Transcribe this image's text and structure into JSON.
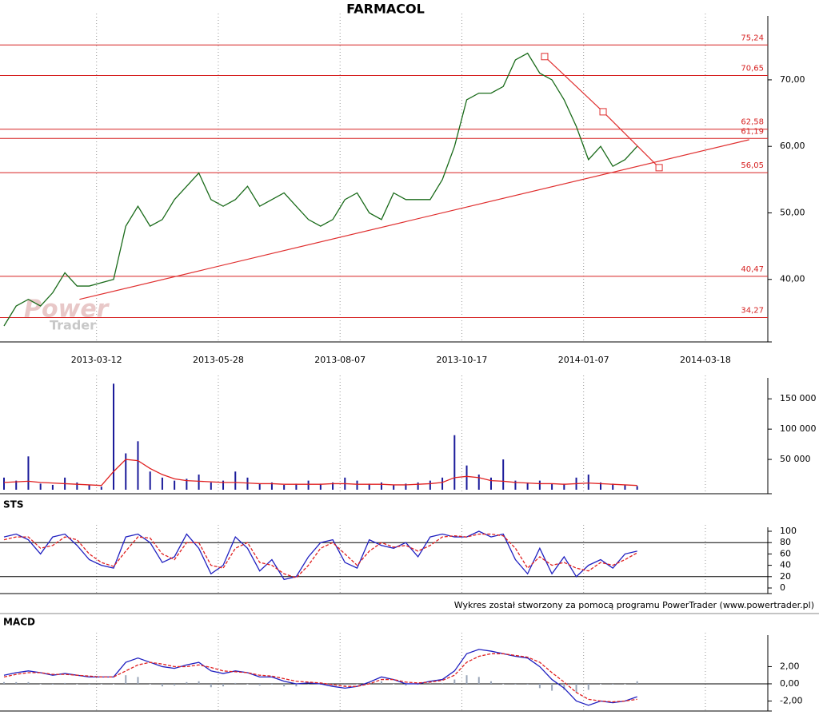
{
  "chart_data": [
    {
      "type": "line",
      "title": "FARMACOL",
      "x": [
        0,
        5,
        10,
        15,
        20,
        25,
        30,
        35,
        40,
        45,
        50,
        55,
        60,
        65,
        70,
        75,
        80,
        85,
        90,
        95,
        100,
        105,
        110,
        115,
        120,
        125,
        130,
        135,
        140,
        145,
        150,
        155,
        160,
        165,
        170,
        175,
        180,
        185,
        190,
        195,
        200,
        205,
        210,
        215,
        220,
        225,
        230,
        235,
        240,
        245,
        250,
        255,
        260
      ],
      "series": [
        {
          "color": "#1a6b1a",
          "values": [
            33,
            36,
            37,
            36,
            38,
            41,
            39,
            39,
            39.5,
            40,
            48,
            51,
            48,
            49,
            52,
            54,
            56,
            52,
            51,
            52,
            54,
            51,
            52,
            53,
            51,
            49,
            48,
            49,
            52,
            53,
            50,
            49,
            53,
            52,
            52,
            52,
            55,
            60,
            67,
            68,
            68,
            69,
            73,
            74,
            71,
            70,
            67,
            63,
            58,
            60,
            57,
            58,
            60
          ]
        }
      ],
      "xlim": [
        0,
        312
      ],
      "xticks": [
        {
          "value": 38,
          "label": "2013-03-12"
        },
        {
          "value": 88,
          "label": "2013-05-28"
        },
        {
          "value": 138,
          "label": "2013-08-07"
        },
        {
          "value": 188,
          "label": "2013-10-17"
        },
        {
          "value": 238,
          "label": "2014-01-07"
        },
        {
          "value": 288,
          "label": "2014-03-18"
        }
      ],
      "ylim": [
        30.6,
        79
      ],
      "yticks": [
        {
          "value": 40,
          "label": "40,00"
        },
        {
          "value": 50,
          "label": "50,00"
        },
        {
          "value": 60,
          "label": "60,00"
        },
        {
          "value": 70,
          "label": "70,00"
        }
      ],
      "hline_color": "#d62020",
      "hlines": [
        {
          "value": 75.24,
          "label": "75,24"
        },
        {
          "value": 70.65,
          "label": "70,65"
        },
        {
          "value": 62.58,
          "label": "62,58"
        },
        {
          "value": 61.19,
          "label": "61,19"
        },
        {
          "value": 56.05,
          "label": "56,05"
        },
        {
          "value": 40.47,
          "label": "40,47"
        },
        {
          "value": 34.27,
          "label": "34,27"
        }
      ],
      "trendlines": [
        {
          "color": "#e03030",
          "x": [
            31,
            306
          ],
          "values": [
            37,
            61
          ]
        },
        {
          "color": "#e03030",
          "x": [
            222,
            246,
            269
          ],
          "values": [
            73.5,
            65.2,
            56.8
          ],
          "markers": true
        }
      ]
    },
    {
      "type": "bar",
      "x": [
        0,
        5,
        10,
        15,
        20,
        25,
        30,
        35,
        40,
        45,
        50,
        55,
        60,
        65,
        70,
        75,
        80,
        85,
        90,
        95,
        100,
        105,
        110,
        115,
        120,
        125,
        130,
        135,
        140,
        145,
        150,
        155,
        160,
        165,
        170,
        175,
        180,
        185,
        190,
        195,
        200,
        205,
        210,
        215,
        220,
        225,
        230,
        235,
        240,
        245,
        250,
        255,
        260
      ],
      "series": [
        {
          "type": "bar",
          "color": "#1a1a9a",
          "values": [
            20000,
            15000,
            55000,
            10000,
            8000,
            20000,
            12000,
            8000,
            5000,
            175000,
            60000,
            80000,
            30000,
            20000,
            15000,
            18000,
            25000,
            12000,
            15000,
            30000,
            20000,
            10000,
            12000,
            8000,
            10000,
            15000,
            10000,
            12000,
            20000,
            15000,
            10000,
            12000,
            8000,
            10000,
            12000,
            15000,
            20000,
            90000,
            40000,
            25000,
            20000,
            50000,
            15000,
            12000,
            15000,
            10000,
            10000,
            20000,
            25000,
            12000,
            10000,
            8000,
            6000
          ]
        },
        {
          "type": "line",
          "color": "#e02020",
          "values": [
            12000,
            13000,
            14000,
            12000,
            11000,
            10000,
            9000,
            8000,
            7000,
            30000,
            50000,
            48000,
            35000,
            25000,
            18000,
            15000,
            14000,
            13000,
            12000,
            12000,
            11000,
            10000,
            10000,
            9000,
            9000,
            9000,
            9000,
            10000,
            10000,
            9000,
            9000,
            9000,
            8000,
            8000,
            9000,
            10000,
            12000,
            20000,
            22000,
            20000,
            15000,
            14000,
            12000,
            11000,
            10000,
            10000,
            9000,
            10000,
            11000,
            10000,
            9000,
            8000,
            7000
          ]
        }
      ],
      "xlim": [
        0,
        312
      ],
      "ylim": [
        0,
        178000
      ],
      "yticks": [
        {
          "value": 50000,
          "label": "50 000"
        },
        {
          "value": 100000,
          "label": "100 000"
        },
        {
          "value": 150000,
          "label": "150 000"
        }
      ]
    },
    {
      "type": "line",
      "title": "STS",
      "x": [
        0,
        5,
        10,
        15,
        20,
        25,
        30,
        35,
        40,
        45,
        50,
        55,
        60,
        65,
        70,
        75,
        80,
        85,
        90,
        95,
        100,
        105,
        110,
        115,
        120,
        125,
        130,
        135,
        140,
        145,
        150,
        155,
        160,
        165,
        170,
        175,
        180,
        185,
        190,
        195,
        200,
        205,
        210,
        215,
        220,
        225,
        230,
        235,
        240,
        245,
        250,
        255,
        260
      ],
      "series": [
        {
          "type": "line",
          "color": "#2020c0",
          "values": [
            90,
            95,
            85,
            60,
            90,
            95,
            75,
            50,
            40,
            35,
            90,
            95,
            80,
            45,
            55,
            95,
            70,
            25,
            40,
            90,
            70,
            30,
            50,
            15,
            20,
            55,
            80,
            85,
            45,
            35,
            85,
            75,
            70,
            80,
            55,
            90,
            95,
            90,
            90,
            100,
            90,
            95,
            50,
            25,
            70,
            25,
            55,
            20,
            40,
            50,
            35,
            60,
            65
          ]
        },
        {
          "type": "line",
          "color": "#e02020",
          "dashed": true,
          "values": [
            85,
            90,
            90,
            70,
            75,
            90,
            85,
            60,
            45,
            38,
            65,
            90,
            88,
            60,
            50,
            80,
            80,
            40,
            35,
            70,
            80,
            45,
            40,
            25,
            18,
            40,
            70,
            80,
            60,
            40,
            65,
            80,
            72,
            75,
            65,
            75,
            90,
            92,
            90,
            95,
            95,
            92,
            70,
            35,
            55,
            40,
            45,
            35,
            30,
            45,
            40,
            50,
            62
          ]
        }
      ],
      "xlim": [
        0,
        312
      ],
      "ylim": [
        0,
        100
      ],
      "yticks": [
        0,
        20,
        40,
        60,
        80,
        100
      ],
      "hline_color": "#000000",
      "hlines": [
        80,
        20
      ]
    },
    {
      "type": "line",
      "title": "MACD",
      "x": [
        0,
        5,
        10,
        15,
        20,
        25,
        30,
        35,
        40,
        45,
        50,
        55,
        60,
        65,
        70,
        75,
        80,
        85,
        90,
        95,
        100,
        105,
        110,
        115,
        120,
        125,
        130,
        135,
        140,
        145,
        150,
        155,
        160,
        165,
        170,
        175,
        180,
        185,
        190,
        195,
        200,
        205,
        210,
        215,
        220,
        225,
        230,
        235,
        240,
        245,
        250,
        255,
        260
      ],
      "series": [
        {
          "type": "bar",
          "color": "#9aa6b8",
          "values": [
            0.2,
            0.2,
            0.2,
            0,
            -0.1,
            0.1,
            0,
            -0.1,
            0,
            0,
            1.0,
            0.8,
            0,
            -0.3,
            -0.2,
            0.2,
            0.3,
            -0.4,
            -0.3,
            0.1,
            0,
            -0.2,
            -0.1,
            -0.3,
            -0.3,
            -0.1,
            -0.1,
            -0.2,
            -0.2,
            0,
            0.2,
            0.3,
            0,
            -0.2,
            -0.1,
            0.1,
            0.1,
            0.5,
            1.0,
            0.8,
            0.3,
            0,
            -0.1,
            -0.1,
            -0.5,
            -0.8,
            -0.7,
            -1.0,
            -0.7,
            0,
            -0.1,
            0,
            0.3
          ]
        },
        {
          "type": "line",
          "color": "#2020c0",
          "values": [
            1.0,
            1.3,
            1.5,
            1.3,
            1.0,
            1.2,
            1.0,
            0.8,
            0.8,
            0.8,
            2.5,
            3.0,
            2.5,
            2.0,
            1.8,
            2.2,
            2.5,
            1.5,
            1.2,
            1.5,
            1.3,
            0.8,
            0.8,
            0.3,
            0.0,
            0.1,
            0.0,
            -0.3,
            -0.5,
            -0.3,
            0.2,
            0.8,
            0.5,
            0.0,
            0.0,
            0.3,
            0.5,
            1.5,
            3.5,
            4.0,
            3.8,
            3.5,
            3.2,
            3.0,
            2.0,
            0.5,
            -0.5,
            -2.0,
            -2.5,
            -2.0,
            -2.2,
            -2.0,
            -1.5
          ]
        },
        {
          "type": "line",
          "color": "#e02020",
          "dashed": true,
          "values": [
            0.8,
            1.1,
            1.3,
            1.3,
            1.1,
            1.1,
            1.0,
            0.9,
            0.8,
            0.8,
            1.5,
            2.2,
            2.5,
            2.3,
            2.0,
            2.0,
            2.2,
            1.9,
            1.5,
            1.4,
            1.3,
            1.0,
            0.9,
            0.6,
            0.3,
            0.2,
            0.1,
            -0.1,
            -0.3,
            -0.3,
            0.0,
            0.5,
            0.5,
            0.2,
            0.1,
            0.2,
            0.4,
            1.0,
            2.5,
            3.2,
            3.5,
            3.5,
            3.3,
            3.1,
            2.5,
            1.3,
            0.2,
            -1.0,
            -1.8,
            -2.0,
            -2.1,
            -2.0,
            -1.8
          ]
        }
      ],
      "xlim": [
        0,
        312
      ],
      "ylim": [
        -3.2,
        5.2
      ],
      "yticks": [
        {
          "value": -2,
          "label": "-2,00"
        },
        {
          "value": 0,
          "label": "0,00"
        },
        {
          "value": 2,
          "label": "2,00"
        }
      ],
      "hline_color": "#000000",
      "hlines": [
        0
      ]
    }
  ],
  "footer": "Wykres został stworzony za pomocą programu PowerTrader (www.powertrader.pl)",
  "watermark": [
    "Power",
    "Trader"
  ]
}
